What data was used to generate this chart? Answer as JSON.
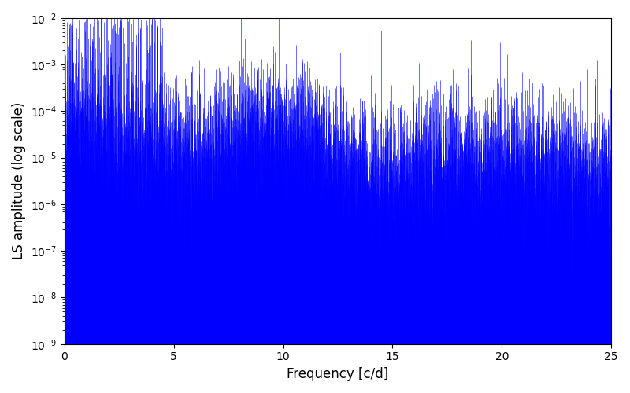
{
  "title": "",
  "xlabel": "Frequency [c/d]",
  "ylabel": "LS amplitude (log scale)",
  "line_color": "#0000ff",
  "xlim": [
    0,
    25
  ],
  "ylim": [
    1e-09,
    0.01
  ],
  "yscale": "log",
  "figsize": [
    8.0,
    5.0
  ],
  "dpi": 100,
  "seed": 42,
  "n_points": 5000,
  "freq_max": 25.0,
  "background_color": "#ffffff"
}
